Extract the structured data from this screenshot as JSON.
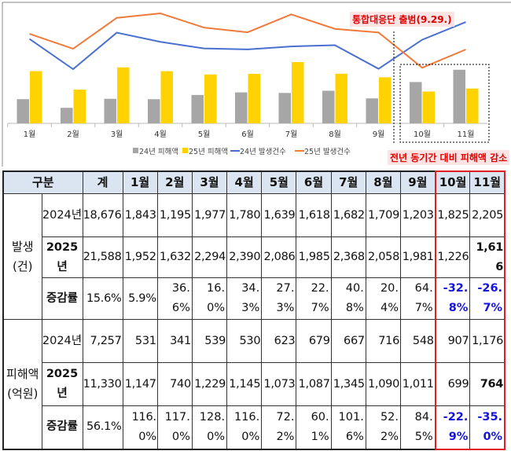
{
  "chart_data": {
    "type": "bar+line",
    "categories": [
      "1월",
      "2월",
      "3월",
      "4월",
      "5월",
      "6월",
      "7월",
      "8월",
      "9월",
      "10월",
      "11월"
    ],
    "series": [
      {
        "name": "24년 피해액",
        "type": "bar",
        "color": "#a6a6a6",
        "values": [
          531,
          341,
          539,
          530,
          623,
          679,
          667,
          716,
          548,
          907,
          1176
        ]
      },
      {
        "name": "25년 피해액",
        "type": "bar",
        "color": "#ffd200",
        "values": [
          1147,
          740,
          1229,
          1145,
          1073,
          1087,
          1345,
          1090,
          1011,
          699,
          764
        ]
      },
      {
        "name": "24년 발생건수",
        "type": "line",
        "color": "#4a6fd0",
        "values": [
          1843,
          1195,
          1977,
          1780,
          1639,
          1618,
          1682,
          1709,
          1203,
          1825,
          2205
        ]
      },
      {
        "name": "25년 발생건수",
        "type": "line",
        "color": "#f07a3a",
        "values": [
          1952,
          1632,
          2294,
          2390,
          2086,
          1985,
          2368,
          2058,
          1981,
          1226,
          1616
        ]
      }
    ],
    "legend_position": "bottom",
    "annotations": [
      "통합대응단 출범(9.29.)",
      "전년 동기간 대비 피해액 감소"
    ]
  },
  "table": {
    "header": [
      "구분",
      "계",
      "1월",
      "2월",
      "3월",
      "4월",
      "5월",
      "6월",
      "7월",
      "8월",
      "9월",
      "10월",
      "11월"
    ],
    "groups": [
      {
        "label": "발생\n(건)",
        "rows": [
          {
            "label": "2024년",
            "bold": false,
            "values": [
              "18,676",
              "1,843",
              "1,195",
              "1,977",
              "1,780",
              "1,639",
              "1,618",
              "1,682",
              "1,709",
              "1,203",
              "1,825",
              "2,205"
            ]
          },
          {
            "label": "2025년",
            "bold": true,
            "values": [
              "21,588",
              "1,952",
              "1,632",
              "2,294",
              "2,390",
              "2,086",
              "1,985",
              "2,368",
              "2,058",
              "1,981",
              "1,226",
              "1,616"
            ]
          },
          {
            "label": "증감률",
            "bold": true,
            "values": [
              "15.6%",
              "5.9%",
              "36.6%",
              "16.0%",
              "34.3%",
              "27.3%",
              "22.7%",
              "40.8%",
              "20.4%",
              "64.7%",
              "-32.8%",
              "-26.7%"
            ]
          }
        ]
      },
      {
        "label": "피해액\n(억원)",
        "rows": [
          {
            "label": "2024년",
            "bold": false,
            "values": [
              "7,257",
              "531",
              "341",
              "539",
              "530",
              "623",
              "679",
              "667",
              "716",
              "548",
              "907",
              "1,176"
            ]
          },
          {
            "label": "2025년",
            "bold": true,
            "values": [
              "11,330",
              "1,147",
              "740",
              "1,229",
              "1,145",
              "1,073",
              "1,087",
              "1,345",
              "1,090",
              "1,011",
              "699",
              "764"
            ]
          },
          {
            "label": "증감률",
            "bold": true,
            "values": [
              "56.1%",
              "116.0%",
              "117.0%",
              "128.0%",
              "116.0%",
              "72.2%",
              "60.1%",
              "101.6%",
              "52.2%",
              "84.5%",
              "-22.9%",
              "-35.0%"
            ]
          }
        ]
      }
    ]
  }
}
